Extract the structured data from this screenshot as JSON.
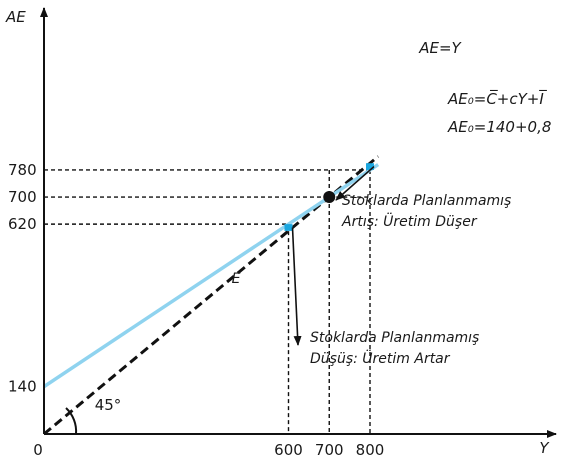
{
  "chart_data": {
    "type": "line",
    "xlabel": "Y",
    "ylabel": "AE",
    "origin_label": "0",
    "xlim": [
      0,
      820
    ],
    "ylim": [
      0,
      830
    ],
    "x_ticks": [
      {
        "value": 600,
        "label": "600"
      },
      {
        "value": 700,
        "label": "700"
      },
      {
        "value": 800,
        "label": "800"
      }
    ],
    "y_ticks": [
      {
        "value": 140,
        "label": "140"
      },
      {
        "value": 620,
        "label": "620"
      },
      {
        "value": 700,
        "label": "700"
      },
      {
        "value": 780,
        "label": "780"
      }
    ],
    "series": [
      {
        "name": "AE=Y",
        "style": "dashed",
        "color": "#111111",
        "x": [
          0,
          820
        ],
        "y": [
          0,
          820
        ]
      },
      {
        "name": "AE₀",
        "style": "solid",
        "color": "#8fd3ef",
        "x": [
          0,
          820
        ],
        "y": [
          140,
          796
        ]
      }
    ],
    "equations": [
      "AE₀=C̅+cY+I̅",
      "AE₀=140+0,8"
    ],
    "equilibrium": {
      "label": "E",
      "x": 700,
      "y": 700
    },
    "angle_label": "45°",
    "gap_markers": [
      {
        "x": 800,
        "y_from": 780,
        "y_to": 800,
        "color": "#1aa7e0"
      },
      {
        "x": 600,
        "y_from": 600,
        "y_to": 620,
        "color": "#1aa7e0"
      }
    ],
    "annotations": [
      {
        "lines": [
          "Stoklarda Planlanmamış",
          "Artış: Üretim Düşer"
        ],
        "point_x": 800,
        "point_y": 790
      },
      {
        "lines": [
          "Stoklarda Planlanmamış",
          "Düşüş: Üretim Artar"
        ],
        "point_x": 600,
        "point_y": 610
      }
    ],
    "grid": false
  }
}
